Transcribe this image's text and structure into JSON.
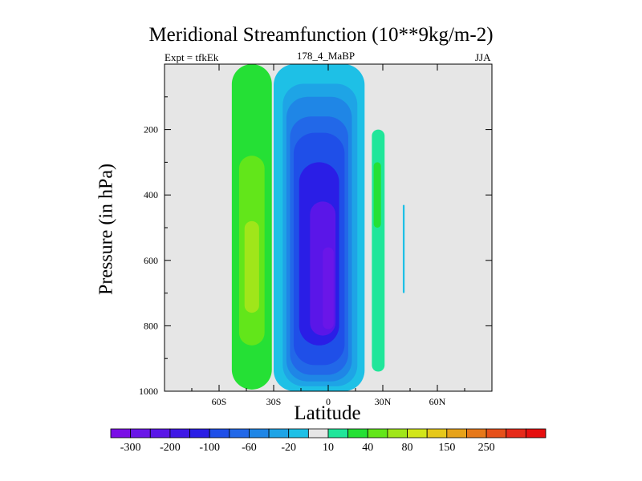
{
  "chart_data": {
    "type": "heatmap",
    "title": "Meridional Streamfunction (10**9kg/m-2)",
    "left_label": "Expt = tfkEk",
    "center_label": "178_4_MaBP",
    "right_label": "JJA",
    "xlabel": "Latitude",
    "ylabel": "Pressure (in hPa)",
    "xlim": [
      -90,
      90
    ],
    "ylim": [
      1000,
      0
    ],
    "x_ticks": [
      {
        "value": -60,
        "label": "60S"
      },
      {
        "value": -30,
        "label": "30S"
      },
      {
        "value": 0,
        "label": "0"
      },
      {
        "value": 30,
        "label": "30N"
      },
      {
        "value": 60,
        "label": "60N"
      }
    ],
    "y_ticks": [
      {
        "value": 200,
        "label": "200"
      },
      {
        "value": 400,
        "label": "400"
      },
      {
        "value": 600,
        "label": "600"
      },
      {
        "value": 800,
        "label": "800"
      },
      {
        "value": 1000,
        "label": "1000"
      }
    ],
    "background_color": "#e6e6e6",
    "colorbar": {
      "colors": [
        "#7a0ee6",
        "#6a16e8",
        "#5a16e8",
        "#3f18e6",
        "#2a1ee6",
        "#1f4fe8",
        "#2268e8",
        "#1f86e6",
        "#1ea4e6",
        "#1ec0e6",
        "#e6e6e6",
        "#20e69a",
        "#25e035",
        "#62e61a",
        "#a0e61a",
        "#d2e61a",
        "#e6c81a",
        "#e6a21a",
        "#e6781a",
        "#e6501a",
        "#e62a1a",
        "#e60f0f"
      ],
      "tick_labels": [
        "-300",
        "-200",
        "-100",
        "-60",
        "-20",
        "10",
        "40",
        "80",
        "150",
        "250"
      ]
    },
    "regions": [
      {
        "name": "sh-cell",
        "level": 1,
        "color": "#25e035",
        "lat": [
          -53,
          -31
        ],
        "top": 0,
        "bottom": 995
      },
      {
        "name": "sh-cell",
        "level": 2,
        "color": "#62e61a",
        "lat": [
          -49,
          -35
        ],
        "top": 280,
        "bottom": 860
      },
      {
        "name": "sh-cell",
        "level": 3,
        "color": "#a0e61a",
        "lat": [
          -46,
          -38
        ],
        "top": 480,
        "bottom": 760
      },
      {
        "name": "hadley-cell",
        "level": 1,
        "color": "#1ec0e6",
        "lat": [
          -30,
          20
        ],
        "top": 0,
        "bottom": 1000
      },
      {
        "name": "hadley-cell",
        "level": 2,
        "color": "#1ea4e6",
        "lat": [
          -25,
          16
        ],
        "top": 60,
        "bottom": 985
      },
      {
        "name": "hadley-cell",
        "level": 3,
        "color": "#1f86e6",
        "lat": [
          -23,
          13
        ],
        "top": 100,
        "bottom": 970
      },
      {
        "name": "hadley-cell",
        "level": 4,
        "color": "#2268e8",
        "lat": [
          -21,
          11
        ],
        "top": 160,
        "bottom": 950
      },
      {
        "name": "hadley-cell",
        "level": 5,
        "color": "#1f4fe8",
        "lat": [
          -19,
          9
        ],
        "top": 210,
        "bottom": 920
      },
      {
        "name": "hadley-cell",
        "level": 6,
        "color": "#2a1ee6",
        "lat": [
          -16,
          6
        ],
        "top": 300,
        "bottom": 860
      },
      {
        "name": "hadley-cell",
        "level": 7,
        "color": "#5a16e8",
        "lat": [
          -10,
          4
        ],
        "top": 420,
        "bottom": 830
      },
      {
        "name": "hadley-cell",
        "level": 8,
        "color": "#6a16e8",
        "lat": [
          -3,
          3
        ],
        "top": 560,
        "bottom": 810
      },
      {
        "name": "nh-cell",
        "level": 1,
        "color": "#20e69a",
        "lat": [
          24,
          31
        ],
        "top": 200,
        "bottom": 940
      },
      {
        "name": "nh-cell",
        "level": 2,
        "color": "#25e035",
        "lat": [
          25,
          29
        ],
        "top": 300,
        "bottom": 500
      },
      {
        "name": "nh-cell",
        "level": 3,
        "color": "#1ec0e6",
        "lat": [
          41,
          42
        ],
        "top": 430,
        "bottom": 700
      }
    ]
  }
}
